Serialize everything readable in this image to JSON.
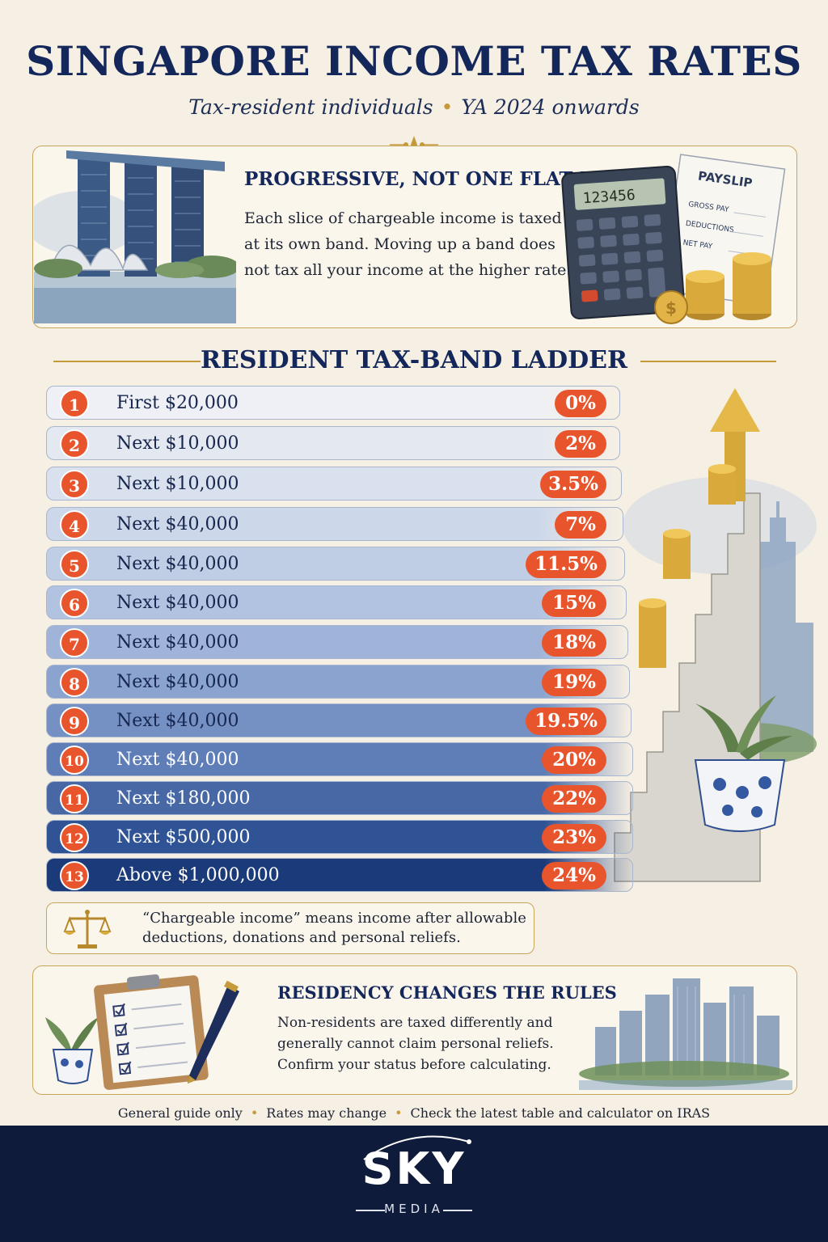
{
  "header": {
    "title": "SINGAPORE INCOME TAX RATES",
    "subtitle_left": "Tax-resident individuals",
    "subtitle_right": "YA 2024 onwards"
  },
  "intro": {
    "title": "PROGRESSIVE, NOT ONE FLAT RATE",
    "text": "Each slice of chargeable income is taxed at its own band. Moving up a band does not tax all your income at the higher rate.",
    "payslip_title": "PAYSLIP",
    "payslip_lines": [
      "GROSS PAY",
      "DEDUCTIONS",
      "NET PAY"
    ],
    "calculator_display": "123456"
  },
  "ladder": {
    "heading": "RESIDENT TAX-BAND LADDER",
    "bands": [
      {
        "num": "1",
        "label": "First $20,000",
        "rate": "0%"
      },
      {
        "num": "2",
        "label": "Next $10,000",
        "rate": "2%"
      },
      {
        "num": "3",
        "label": "Next $10,000",
        "rate": "3.5%"
      },
      {
        "num": "4",
        "label": "Next $40,000",
        "rate": "7%"
      },
      {
        "num": "5",
        "label": "Next $40,000",
        "rate": "11.5%"
      },
      {
        "num": "6",
        "label": "Next $40,000",
        "rate": "15%"
      },
      {
        "num": "7",
        "label": "Next $40,000",
        "rate": "18%"
      },
      {
        "num": "8",
        "label": "Next $40,000",
        "rate": "19%"
      },
      {
        "num": "9",
        "label": "Next $40,000",
        "rate": "19.5%"
      },
      {
        "num": "10",
        "label": "Next $40,000",
        "rate": "20%"
      },
      {
        "num": "11",
        "label": "Next $180,000",
        "rate": "22%"
      },
      {
        "num": "12",
        "label": "Next $500,000",
        "rate": "23%"
      },
      {
        "num": "13",
        "label": "Above $1,000,000",
        "rate": "24%"
      }
    ]
  },
  "note": {
    "text": "“Chargeable income” means income after allowable deductions, donations and personal reliefs."
  },
  "residency": {
    "title": "RESIDENCY CHANGES THE RULES",
    "text": "Non-residents are taxed differently and generally cannot claim personal reliefs. Confirm your status before calculating."
  },
  "footer": {
    "items": [
      "General guide only",
      "Rates may change",
      "Check the latest table and calculator on IRAS"
    ]
  },
  "brand": {
    "name": "SKY",
    "sub": "MEDIA"
  },
  "colors": {
    "navy": "#14275a",
    "accent_orange": "#e8552d",
    "gold": "#c49a3a",
    "background": "#f6efe3"
  }
}
